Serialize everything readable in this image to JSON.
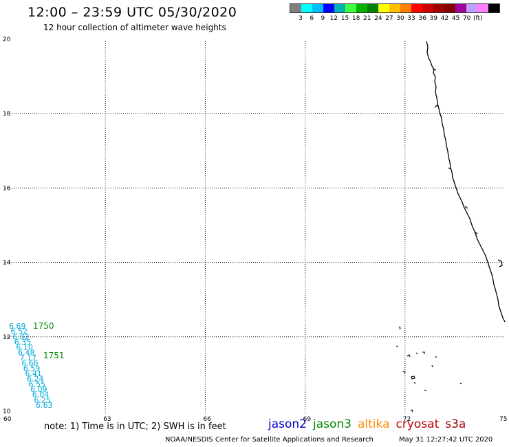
{
  "header": {
    "title": "12:00 – 23:59 UTC 05/30/2020",
    "subtitle": "12 hour collection of altimeter wave heights"
  },
  "legend": {
    "colors": [
      "#7f7f7f",
      "#00ffff",
      "#00bfff",
      "#0000ff",
      "#00b3b3",
      "#40ff40",
      "#00b300",
      "#008000",
      "#ffff00",
      "#ffc000",
      "#ff8000",
      "#ff0000",
      "#cc0000",
      "#a00000",
      "#800000",
      "#a000a0",
      "#c0a0ff",
      "#ff80ff",
      "#000000"
    ],
    "labels": [
      "3",
      "6",
      "9",
      "12",
      "15",
      "18",
      "21",
      "24",
      "27",
      "30",
      "33",
      "36",
      "39",
      "42",
      "45",
      "70",
      "(ft)"
    ]
  },
  "map": {
    "x_ticks": [
      "60",
      "63",
      "66",
      "69",
      "72",
      "75"
    ],
    "y_ticks": [
      "20",
      "18",
      "16",
      "14",
      "12",
      "10"
    ],
    "coast_color": "#000000",
    "tracks": [
      {
        "color": "#00aadd",
        "labels": [
          "6.69",
          "6.52",
          "6.02",
          "6.35",
          "6.10",
          "6.48",
          "7.17",
          "6.66",
          "6.59",
          "6.41",
          "6.24",
          "6.55",
          "6.09",
          "6.04",
          "6.25",
          "6.63"
        ]
      }
    ],
    "time_labels": [
      {
        "text": "1750",
        "color": "#008800"
      },
      {
        "text": "1751",
        "color": "#008800"
      }
    ]
  },
  "notes": {
    "text": "note:  1) Time is in UTC;  2) SWH is in feet"
  },
  "satellites": [
    {
      "name": "jason2",
      "color": "#0000cc"
    },
    {
      "name": "jason3",
      "color": "#008800"
    },
    {
      "name": "altika",
      "color": "#ff8c00"
    },
    {
      "name": "cryosat",
      "color": "#bb0000"
    },
    {
      "name": "s3a",
      "color": "#990000"
    }
  ],
  "footer": {
    "source": "NOAA/NESDIS Center for Satellite Applications and Research",
    "timestamp": "May 31 12:27:42 UTC 2020"
  }
}
